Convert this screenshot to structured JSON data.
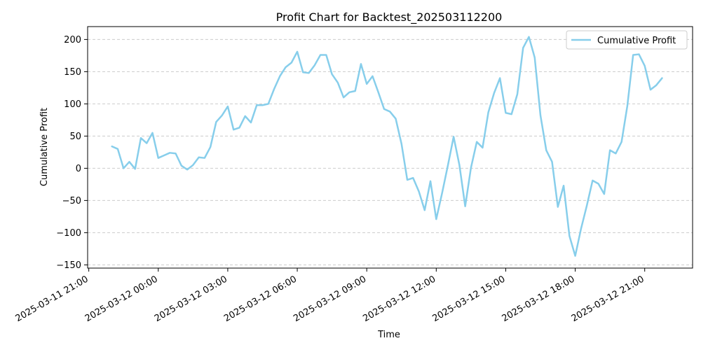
{
  "chart_data": {
    "type": "line",
    "title": "Profit Chart for Backtest_202503112200",
    "xlabel": "Time",
    "ylabel": "Cumulative Profit",
    "x_type": "datetime",
    "x_tick_labels": [
      "2025-03-11 21:00",
      "2025-03-12 00:00",
      "2025-03-12 03:00",
      "2025-03-12 06:00",
      "2025-03-12 09:00",
      "2025-03-12 12:00",
      "2025-03-12 15:00",
      "2025-03-12 18:00",
      "2025-03-12 21:00"
    ],
    "x_tick_values": [
      "2025-03-11 21:00",
      "2025-03-12 00:00",
      "2025-03-12 03:00",
      "2025-03-12 06:00",
      "2025-03-12 09:00",
      "2025-03-12 12:00",
      "2025-03-12 15:00",
      "2025-03-12 18:00",
      "2025-03-12 21:00"
    ],
    "xlim": [
      "2025-03-11 20:57",
      "2025-03-12 23:04"
    ],
    "ylim": [
      -155,
      220
    ],
    "y_ticks": [
      -150,
      -100,
      -50,
      0,
      50,
      100,
      150,
      200
    ],
    "grid": {
      "y": true,
      "x": false,
      "style": "dashed"
    },
    "legend": {
      "position": "top-right",
      "entries": [
        "Cumulative Profit"
      ]
    },
    "series": [
      {
        "name": "Cumulative Profit",
        "color": "#87CEEB",
        "x": [
          "2025-03-11 22:00",
          "2025-03-11 22:15",
          "2025-03-11 22:30",
          "2025-03-11 22:45",
          "2025-03-11 23:00",
          "2025-03-11 23:15",
          "2025-03-11 23:30",
          "2025-03-11 23:45",
          "2025-03-12 00:00",
          "2025-03-12 00:15",
          "2025-03-12 00:30",
          "2025-03-12 00:45",
          "2025-03-12 01:00",
          "2025-03-12 01:15",
          "2025-03-12 01:30",
          "2025-03-12 01:45",
          "2025-03-12 02:00",
          "2025-03-12 02:15",
          "2025-03-12 02:30",
          "2025-03-12 02:45",
          "2025-03-12 03:00",
          "2025-03-12 03:15",
          "2025-03-12 03:30",
          "2025-03-12 03:45",
          "2025-03-12 04:00",
          "2025-03-12 04:15",
          "2025-03-12 04:30",
          "2025-03-12 04:45",
          "2025-03-12 05:00",
          "2025-03-12 05:15",
          "2025-03-12 05:30",
          "2025-03-12 05:45",
          "2025-03-12 06:00",
          "2025-03-12 06:15",
          "2025-03-12 06:30",
          "2025-03-12 06:45",
          "2025-03-12 07:00",
          "2025-03-12 07:15",
          "2025-03-12 07:30",
          "2025-03-12 07:45",
          "2025-03-12 08:00",
          "2025-03-12 08:15",
          "2025-03-12 08:30",
          "2025-03-12 08:45",
          "2025-03-12 09:00",
          "2025-03-12 09:15",
          "2025-03-12 09:30",
          "2025-03-12 09:45",
          "2025-03-12 10:00",
          "2025-03-12 10:15",
          "2025-03-12 10:30",
          "2025-03-12 10:45",
          "2025-03-12 11:00",
          "2025-03-12 11:15",
          "2025-03-12 11:30",
          "2025-03-12 11:45",
          "2025-03-12 12:00",
          "2025-03-12 12:15",
          "2025-03-12 12:30",
          "2025-03-12 12:45",
          "2025-03-12 13:00",
          "2025-03-12 13:15",
          "2025-03-12 13:30",
          "2025-03-12 13:45",
          "2025-03-12 14:00",
          "2025-03-12 14:15",
          "2025-03-12 14:30",
          "2025-03-12 14:45",
          "2025-03-12 15:00",
          "2025-03-12 15:15",
          "2025-03-12 15:30",
          "2025-03-12 15:45",
          "2025-03-12 16:00",
          "2025-03-12 16:15",
          "2025-03-12 16:30",
          "2025-03-12 16:45",
          "2025-03-12 17:00",
          "2025-03-12 17:15",
          "2025-03-12 17:30",
          "2025-03-12 17:45",
          "2025-03-12 18:00",
          "2025-03-12 18:15",
          "2025-03-12 18:30",
          "2025-03-12 18:45",
          "2025-03-12 19:00",
          "2025-03-12 19:15",
          "2025-03-12 19:30",
          "2025-03-12 19:45",
          "2025-03-12 20:00",
          "2025-03-12 20:15",
          "2025-03-12 20:30",
          "2025-03-12 20:45",
          "2025-03-12 21:00",
          "2025-03-12 21:15",
          "2025-03-12 21:30",
          "2025-03-12 21:45"
        ],
        "values": [
          34,
          30,
          0,
          10,
          -1,
          47,
          39,
          55,
          16,
          20,
          24,
          23,
          4,
          -2,
          5,
          17,
          16,
          33,
          72,
          82,
          96,
          60,
          63,
          81,
          71,
          98,
          98,
          100,
          123,
          143,
          157,
          164,
          181,
          149,
          148,
          160,
          176,
          176,
          146,
          133,
          110,
          118,
          120,
          162,
          131,
          143,
          118,
          92,
          88,
          77,
          38,
          -18,
          -15,
          -36,
          -65,
          -20,
          -79,
          -39,
          4,
          49,
          5,
          -59,
          1,
          41,
          32,
          87,
          117,
          140,
          86,
          84,
          115,
          187,
          204,
          172,
          82,
          28,
          10,
          -60,
          -27,
          -105,
          -136,
          -94,
          -58,
          -19,
          -24,
          -40,
          28,
          23,
          41,
          97,
          176,
          177,
          159,
          122,
          129,
          140
        ]
      }
    ]
  }
}
